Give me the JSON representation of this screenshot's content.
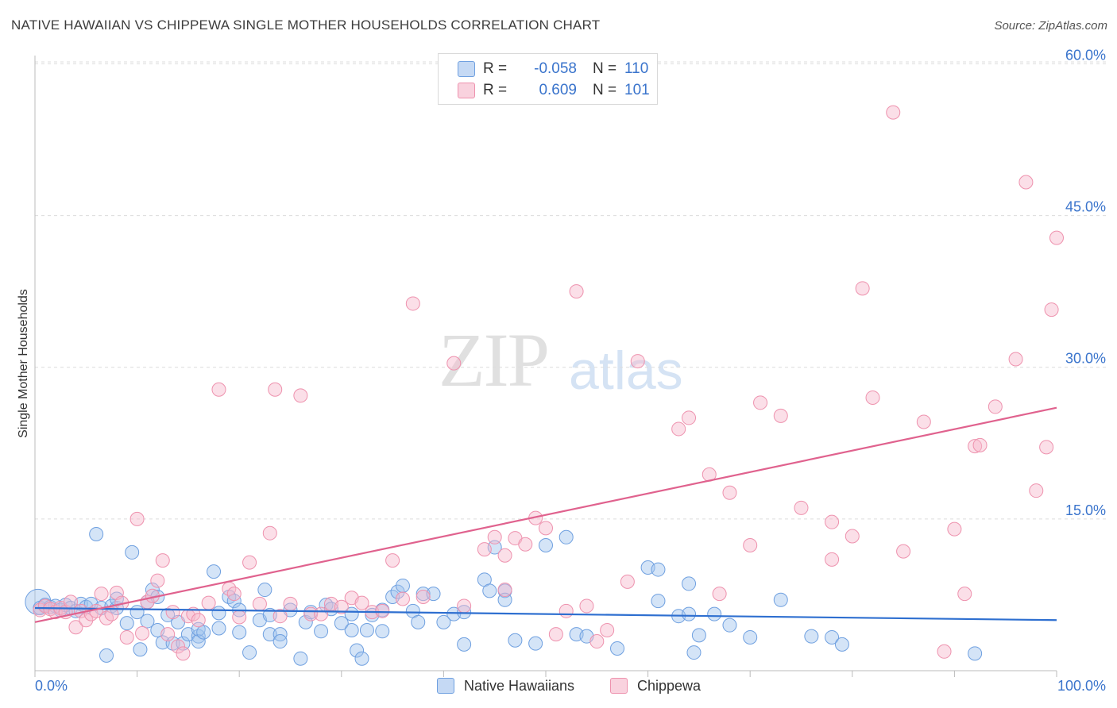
{
  "header": {
    "title": "NATIVE HAWAIIAN VS CHIPPEWA SINGLE MOTHER HOUSEHOLDS CORRELATION CHART",
    "source": "Source: ZipAtlas.com"
  },
  "watermark": {
    "zip": "ZIP",
    "atlas": "atlas"
  },
  "legend": {
    "rows": [
      {
        "r_label": "R =",
        "r_value": "-0.058",
        "n_label": "N =",
        "n_value": "110",
        "color": "#a9c8f0"
      },
      {
        "r_label": "R =",
        "r_value": "0.609",
        "n_label": "N =",
        "n_value": "101",
        "color": "#f6b8cb"
      }
    ]
  },
  "chart_data": {
    "type": "scatter",
    "title": "NATIVE HAWAIIAN VS CHIPPEWA SINGLE MOTHER HOUSEHOLDS CORRELATION CHART",
    "xlabel": "",
    "ylabel": "Single Mother Households",
    "xlim": [
      0,
      100
    ],
    "ylim": [
      0,
      63
    ],
    "x_tick_labels": [
      "0.0%",
      "100.0%"
    ],
    "y_ticks": [
      15,
      30,
      45,
      60
    ],
    "y_tick_labels": [
      "15.0%",
      "30.0%",
      "45.0%",
      "60.0%"
    ],
    "grid": "horizontal dashed",
    "legend_position": "top-center",
    "colors": {
      "native_hawaiians": "#6fa0e0",
      "chippewa": "#ee92ae",
      "blue_line": "#2e6fd0",
      "pink_line": "#e0628e",
      "tick_text": "#3a74cc"
    },
    "series": [
      {
        "name": "Native Hawaiians",
        "trend": {
          "x": [
            0,
            100
          ],
          "y": [
            6.2,
            5.0
          ]
        },
        "points": [
          [
            0.3,
            6.8
          ],
          [
            0.5,
            6.2
          ],
          [
            1,
            6.5
          ],
          [
            1.5,
            6.3
          ],
          [
            2,
            6.4
          ],
          [
            2.5,
            6.0
          ],
          [
            3,
            6.5
          ],
          [
            3.5,
            6.2
          ],
          [
            4,
            5.9
          ],
          [
            4.5,
            6.6
          ],
          [
            5,
            6.3
          ],
          [
            5.5,
            6.6
          ],
          [
            6,
            13.5
          ],
          [
            6.5,
            6.2
          ],
          [
            7,
            1.5
          ],
          [
            7.5,
            6.4
          ],
          [
            8,
            6.2
          ],
          [
            8,
            7.1
          ],
          [
            9,
            4.7
          ],
          [
            9.5,
            11.7
          ],
          [
            10,
            5.8
          ],
          [
            10.3,
            2.1
          ],
          [
            11,
            6.8
          ],
          [
            11,
            4.9
          ],
          [
            11.5,
            8.0
          ],
          [
            12,
            4.0
          ],
          [
            12,
            7.3
          ],
          [
            12.5,
            2.8
          ],
          [
            13,
            5.5
          ],
          [
            13.5,
            2.7
          ],
          [
            14,
            4.8
          ],
          [
            14.5,
            2.7
          ],
          [
            15,
            3.6
          ],
          [
            16,
            3.4
          ],
          [
            16,
            2.9
          ],
          [
            16,
            4.1
          ],
          [
            16.5,
            3.8
          ],
          [
            17.5,
            9.8
          ],
          [
            18,
            4.2
          ],
          [
            18,
            5.7
          ],
          [
            19,
            7.3
          ],
          [
            19.5,
            6.9
          ],
          [
            20,
            6.0
          ],
          [
            20,
            3.8
          ],
          [
            21,
            1.8
          ],
          [
            22,
            5.0
          ],
          [
            22.5,
            8.0
          ],
          [
            23,
            3.6
          ],
          [
            23,
            5.5
          ],
          [
            24,
            3.6
          ],
          [
            24,
            2.9
          ],
          [
            25,
            6.0
          ],
          [
            26,
            1.2
          ],
          [
            26.5,
            4.8
          ],
          [
            27,
            5.8
          ],
          [
            28,
            3.9
          ],
          [
            28.5,
            6.5
          ],
          [
            29,
            6.1
          ],
          [
            30,
            4.7
          ],
          [
            31,
            4.0
          ],
          [
            31,
            5.6
          ],
          [
            31.5,
            2.0
          ],
          [
            32,
            1.2
          ],
          [
            32.5,
            4.0
          ],
          [
            33,
            5.5
          ],
          [
            34,
            3.9
          ],
          [
            34,
            6.0
          ],
          [
            35,
            7.3
          ],
          [
            35.5,
            7.8
          ],
          [
            36,
            8.4
          ],
          [
            37,
            5.9
          ],
          [
            37.5,
            4.8
          ],
          [
            38,
            7.6
          ],
          [
            39,
            7.6
          ],
          [
            40,
            4.8
          ],
          [
            41,
            5.6
          ],
          [
            42,
            5.8
          ],
          [
            42,
            2.6
          ],
          [
            44,
            9.0
          ],
          [
            44.5,
            7.9
          ],
          [
            45,
            12.2
          ],
          [
            46,
            7.9
          ],
          [
            46,
            7.0
          ],
          [
            47,
            3.0
          ],
          [
            49,
            2.7
          ],
          [
            50,
            12.4
          ],
          [
            52,
            13.2
          ],
          [
            53,
            3.6
          ],
          [
            54,
            3.4
          ],
          [
            57,
            2.2
          ],
          [
            60,
            10.2
          ],
          [
            61,
            10.0
          ],
          [
            61,
            6.9
          ],
          [
            63,
            5.4
          ],
          [
            64,
            8.6
          ],
          [
            64,
            5.6
          ],
          [
            64.5,
            1.8
          ],
          [
            65,
            3.5
          ],
          [
            66.5,
            5.6
          ],
          [
            68,
            4.5
          ],
          [
            70,
            3.3
          ],
          [
            73,
            7.0
          ],
          [
            76,
            3.4
          ],
          [
            78,
            3.3
          ],
          [
            79,
            2.6
          ],
          [
            92,
            1.7
          ]
        ]
      },
      {
        "name": "Chippewa",
        "trend": {
          "x": [
            0,
            100
          ],
          "y": [
            4.8,
            26.0
          ]
        },
        "points": [
          [
            0.5,
            6.0
          ],
          [
            1,
            6.4
          ],
          [
            1.5,
            6.1
          ],
          [
            2,
            5.8
          ],
          [
            2.5,
            6.2
          ],
          [
            3,
            5.8
          ],
          [
            3.5,
            6.8
          ],
          [
            4,
            4.3
          ],
          [
            4.5,
            5.9
          ],
          [
            5,
            5.0
          ],
          [
            5.5,
            5.6
          ],
          [
            6,
            5.9
          ],
          [
            6.5,
            7.6
          ],
          [
            7,
            5.2
          ],
          [
            7.5,
            5.6
          ],
          [
            8,
            7.7
          ],
          [
            8.5,
            6.7
          ],
          [
            9,
            3.3
          ],
          [
            10,
            15.0
          ],
          [
            10.5,
            3.7
          ],
          [
            11,
            6.8
          ],
          [
            11.5,
            7.4
          ],
          [
            12,
            8.9
          ],
          [
            12.5,
            10.9
          ],
          [
            13,
            3.6
          ],
          [
            13.5,
            5.8
          ],
          [
            14,
            2.4
          ],
          [
            14.5,
            1.7
          ],
          [
            15,
            5.4
          ],
          [
            15.5,
            5.6
          ],
          [
            16,
            5.0
          ],
          [
            17,
            6.7
          ],
          [
            18,
            27.8
          ],
          [
            19,
            8.1
          ],
          [
            19.5,
            7.6
          ],
          [
            20,
            5.3
          ],
          [
            21,
            10.7
          ],
          [
            22,
            6.6
          ],
          [
            23,
            13.6
          ],
          [
            23.5,
            27.8
          ],
          [
            24,
            5.4
          ],
          [
            25,
            6.6
          ],
          [
            26,
            27.2
          ],
          [
            27,
            5.6
          ],
          [
            28,
            5.6
          ],
          [
            29,
            6.6
          ],
          [
            30,
            6.3
          ],
          [
            31,
            7.2
          ],
          [
            32,
            6.7
          ],
          [
            33,
            5.8
          ],
          [
            34,
            5.9
          ],
          [
            35,
            10.9
          ],
          [
            36,
            7.1
          ],
          [
            37,
            36.3
          ],
          [
            38,
            7.3
          ],
          [
            41,
            30.4
          ],
          [
            42,
            6.4
          ],
          [
            44,
            12.0
          ],
          [
            45,
            13.2
          ],
          [
            46,
            11.4
          ],
          [
            46,
            8.0
          ],
          [
            47,
            13.1
          ],
          [
            48,
            12.5
          ],
          [
            49,
            15.1
          ],
          [
            50,
            14.1
          ],
          [
            51,
            3.6
          ],
          [
            52,
            5.9
          ],
          [
            53,
            37.5
          ],
          [
            54,
            6.4
          ],
          [
            55,
            2.9
          ],
          [
            56,
            4.0
          ],
          [
            58,
            8.8
          ],
          [
            59,
            30.6
          ],
          [
            63,
            23.9
          ],
          [
            64,
            25.0
          ],
          [
            66,
            19.4
          ],
          [
            67,
            7.6
          ],
          [
            68,
            17.6
          ],
          [
            70,
            12.4
          ],
          [
            71,
            26.5
          ],
          [
            73,
            25.2
          ],
          [
            75,
            16.1
          ],
          [
            78,
            14.7
          ],
          [
            78,
            11.0
          ],
          [
            80,
            13.3
          ],
          [
            81,
            37.8
          ],
          [
            82,
            27.0
          ],
          [
            84,
            55.2
          ],
          [
            85,
            11.8
          ],
          [
            87,
            24.6
          ],
          [
            89,
            1.9
          ],
          [
            90,
            14.0
          ],
          [
            91,
            7.6
          ],
          [
            92,
            22.2
          ],
          [
            92.5,
            22.3
          ],
          [
            94,
            26.1
          ],
          [
            96,
            30.8
          ],
          [
            97,
            48.3
          ],
          [
            98,
            17.8
          ],
          [
            99,
            22.1
          ],
          [
            99.5,
            35.7
          ],
          [
            100,
            42.8
          ]
        ]
      }
    ]
  },
  "bottom_legend": {
    "items": [
      {
        "label": "Native Hawaiians"
      },
      {
        "label": "Chippewa"
      }
    ]
  }
}
